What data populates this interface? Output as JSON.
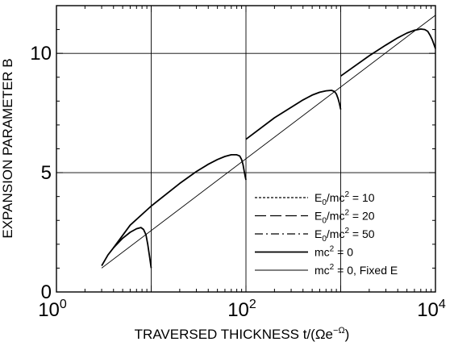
{
  "chart_data": {
    "type": "line",
    "xlabel": "TRAVERSED THICKNESS   t/(Ωe",
    "xlabel_superscript": "−Ω",
    "xlabel_close": ")",
    "ylabel": "EXPANSION PARAMETER  B",
    "x_scale": "log",
    "xlim": [
      1,
      10000
    ],
    "ylim": [
      0,
      12
    ],
    "x_ticks": [
      {
        "value": 1,
        "base": "10",
        "exp": "0"
      },
      {
        "value": 100,
        "base": "10",
        "exp": "2"
      },
      {
        "value": 10000,
        "base": "10",
        "exp": "4"
      }
    ],
    "y_ticks": [
      {
        "value": 0,
        "label": "0"
      },
      {
        "value": 5,
        "label": "5"
      },
      {
        "value": 10,
        "label": "10"
      }
    ],
    "x_gridlines": [
      10,
      100,
      1000
    ],
    "y_gridlines": [
      5,
      10
    ],
    "legend_position": "bottom-right",
    "legend": [
      {
        "base": "E",
        "sub": "0",
        "mid": "/mc",
        "sup": "2",
        "tail": " = 10",
        "dash": "3,2",
        "width": 1.3
      },
      {
        "base": "E",
        "sub": "0",
        "mid": "/mc",
        "sup": "2",
        "tail": " = 20",
        "dash": "14,5",
        "width": 1.3
      },
      {
        "base": "E",
        "sub": "0",
        "mid": "/mc",
        "sup": "2",
        "tail": " = 50",
        "dash": "10,4,2,4",
        "width": 1.3
      },
      {
        "base": "mc",
        "sub": "",
        "mid": "",
        "sup": "2",
        "tail": " = 0",
        "dash": "",
        "width": 1.8
      },
      {
        "base": "mc",
        "sub": "",
        "mid": "",
        "sup": "2",
        "tail": " = 0, Fixed E",
        "dash": "",
        "width": 0.9
      }
    ],
    "series": [
      {
        "x": [
          10,
          3.0,
          10000
        ],
        "y": [
          0,
          1.0,
          11.6
        ],
        "style": "thin-straight"
      },
      {
        "x": [
          3.0,
          3.5,
          4.0,
          5.0,
          6.0,
          7.0,
          7.8,
          8.3,
          8.8,
          9.2,
          9.6,
          10.0
        ],
        "y": [
          1.1,
          1.55,
          1.85,
          2.25,
          2.5,
          2.65,
          2.7,
          2.62,
          2.4,
          2.0,
          1.5,
          1.0
        ],
        "style": "E0=10"
      },
      {
        "x": [
          4,
          6,
          10,
          20,
          30,
          40,
          50,
          60,
          70,
          80,
          86,
          90,
          93,
          96,
          98,
          100
        ],
        "y": [
          1.85,
          2.8,
          3.6,
          4.55,
          5.05,
          5.35,
          5.55,
          5.68,
          5.75,
          5.75,
          5.7,
          5.55,
          5.35,
          5.05,
          4.85,
          4.7
        ],
        "style": "E0=20"
      },
      {
        "x": [
          100,
          200,
          400,
          500,
          600,
          700,
          800,
          860,
          900,
          940,
          970,
          1000
        ],
        "y": [
          6.4,
          7.3,
          8.05,
          8.25,
          8.37,
          8.43,
          8.45,
          8.4,
          8.3,
          8.1,
          7.9,
          7.65
        ],
        "style": "E0=50"
      },
      {
        "x": [
          1000,
          2000,
          3000,
          4000,
          5000,
          6000,
          7000,
          7700,
          8300,
          8800,
          9300,
          9700,
          10000
        ],
        "y": [
          9.05,
          9.9,
          10.35,
          10.65,
          10.85,
          10.97,
          11.02,
          11.0,
          10.92,
          10.75,
          10.55,
          10.35,
          10.2
        ],
        "style": "mc2=0"
      }
    ]
  }
}
